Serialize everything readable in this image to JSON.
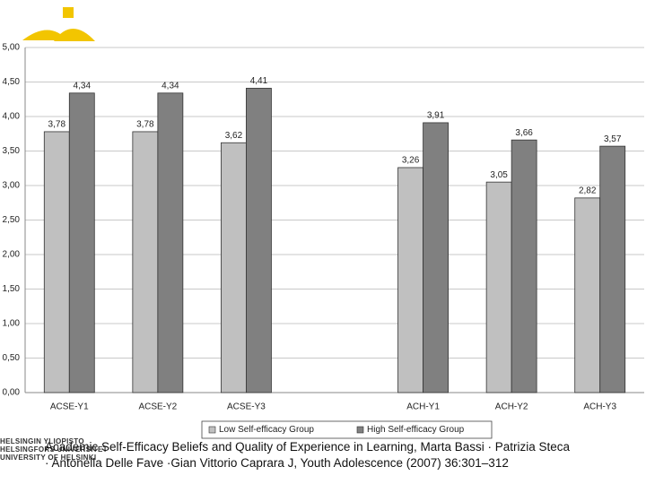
{
  "chart_data": {
    "type": "bar",
    "categories": [
      "ACSE-Y1",
      "ACSE-Y2",
      "ACSE-Y3",
      null,
      "ACH-Y1",
      "ACH-Y2",
      "ACH-Y3"
    ],
    "series": [
      {
        "name": "Low Self-efficacy Group",
        "color": "#c0c0c0",
        "values": [
          3.78,
          3.78,
          3.62,
          null,
          3.26,
          3.05,
          2.82
        ],
        "value_labels": [
          "3,78",
          "3,78",
          "3,62",
          null,
          "3,26",
          "3,05",
          "2,82"
        ]
      },
      {
        "name": "High Self-efficacy Group",
        "color": "#808080",
        "values": [
          4.34,
          4.34,
          4.41,
          null,
          3.91,
          3.66,
          3.57
        ],
        "value_labels": [
          "4,34",
          "4,34",
          "4,41",
          null,
          "3,91",
          "3,66",
          "3,57"
        ]
      }
    ],
    "ylim": [
      0,
      5
    ],
    "yticks": [
      {
        "value": 0,
        "label": "0,00"
      },
      {
        "value": 0.5,
        "label": "0,50"
      },
      {
        "value": 1,
        "label": "1,00"
      },
      {
        "value": 1.5,
        "label": "1,50"
      },
      {
        "value": 2,
        "label": "2,00"
      },
      {
        "value": 2.5,
        "label": "2,50"
      },
      {
        "value": 3,
        "label": "3,00"
      },
      {
        "value": 3.5,
        "label": "3,50"
      },
      {
        "value": 4,
        "label": "4,00"
      },
      {
        "value": 4.5,
        "label": "4,50"
      },
      {
        "value": 5,
        "label": "5,00"
      }
    ],
    "grid": true,
    "legend": "bottom"
  },
  "logo": [
    "HELSINGIN YLIOPISTO",
    "HELSINGFORS UNIVERSITET",
    "UNIVERSITY OF HELSINKI"
  ],
  "caption": "Academic Self-Efficacy Beliefs and Quality of Experience in Learning, Marta Bassi · Patrizia Steca · Antonella Delle Fave ·Gian Vittorio Caprara J, Youth Adolescence (2007) 36:301–312"
}
